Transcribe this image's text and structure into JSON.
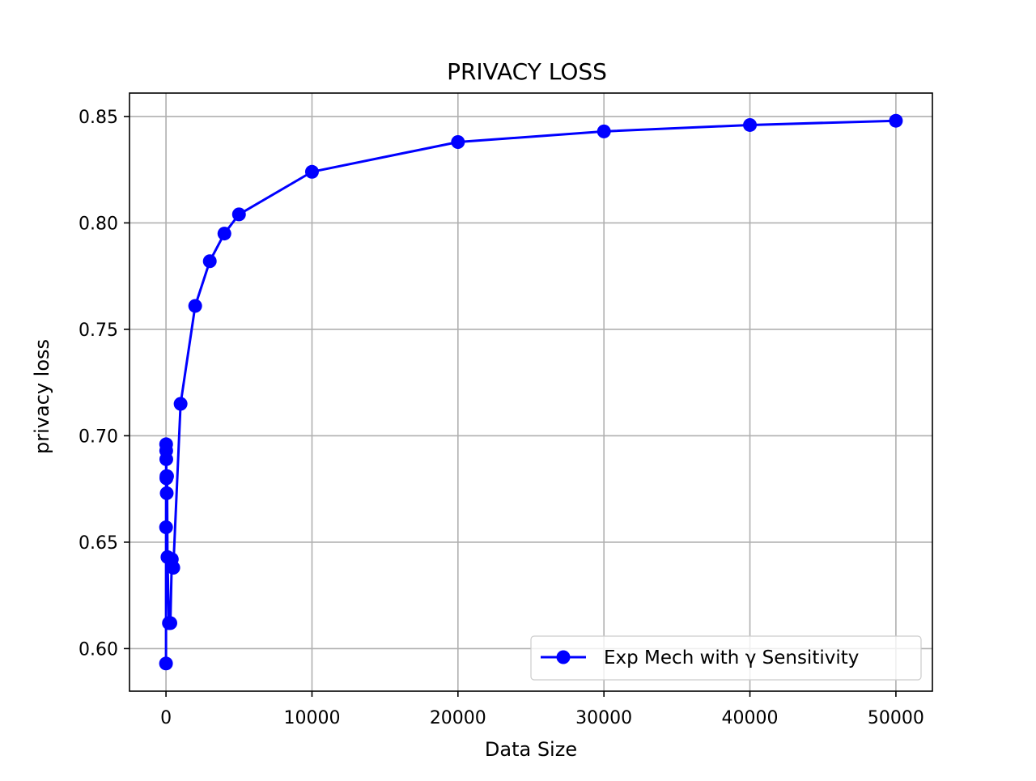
{
  "chart_data": {
    "type": "line",
    "title": "PRIVACY LOSS",
    "xlabel": "Data Size",
    "ylabel": "privacy loss",
    "xlim": [
      -2500,
      52500
    ],
    "ylim": [
      0.58,
      0.861
    ],
    "grid": true,
    "legend_position": "lower right",
    "x_ticks": [
      {
        "value": 0,
        "label": "0"
      },
      {
        "value": 10000,
        "label": "10000"
      },
      {
        "value": 20000,
        "label": "20000"
      },
      {
        "value": 30000,
        "label": "30000"
      },
      {
        "value": 40000,
        "label": "40000"
      },
      {
        "value": 50000,
        "label": "50000"
      }
    ],
    "y_ticks": [
      {
        "value": 0.6,
        "label": "0.60"
      },
      {
        "value": 0.65,
        "label": "0.65"
      },
      {
        "value": 0.7,
        "label": "0.70"
      },
      {
        "value": 0.75,
        "label": "0.75"
      },
      {
        "value": 0.8,
        "label": "0.80"
      },
      {
        "value": 0.85,
        "label": "0.85"
      }
    ],
    "series": [
      {
        "name": "Exp Mech with γ Sensitivity",
        "color": "#0000ff",
        "marker": "circle",
        "x": [
          1,
          5,
          10,
          15,
          20,
          25,
          30,
          50,
          75,
          100,
          200,
          300,
          400,
          500,
          1000,
          2000,
          3000,
          4000,
          5000,
          10000,
          20000,
          30000,
          40000,
          50000
        ],
        "y": [
          0.593,
          0.657,
          0.696,
          0.693,
          0.689,
          0.68,
          0.681,
          0.673,
          0.681,
          0.643,
          0.612,
          0.612,
          0.642,
          0.638,
          0.715,
          0.761,
          0.782,
          0.795,
          0.804,
          0.824,
          0.838,
          0.843,
          0.846,
          0.848
        ]
      }
    ]
  }
}
